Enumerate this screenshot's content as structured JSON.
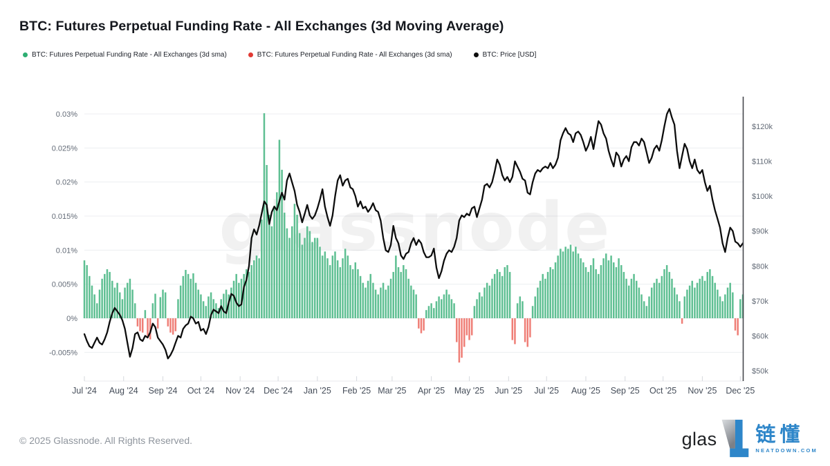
{
  "title": "BTC: Futures Perpetual Funding Rate - All Exchanges (3d Moving Average)",
  "watermark": "glassnode",
  "legend": {
    "items": [
      {
        "label": "BTC: Futures Perpetual Funding Rate - All Exchanges (3d sma)",
        "color": "#2eae72"
      },
      {
        "label": "BTC: Futures Perpetual Funding Rate - All Exchanges (3d sma)",
        "color": "#e13a34"
      },
      {
        "label": "BTC: Price [USD]",
        "color": "#0d0d0d"
      }
    ]
  },
  "footer": {
    "copyright": "© 2025 Glassnode. All Rights Reserved.",
    "brand_text": "glas",
    "logo_cn": "链懂",
    "logo_sub": "NEATDOWN.COM"
  },
  "chart_data": {
    "type": "bar+line",
    "title": "BTC: Futures Perpetual Funding Rate - All Exchanges (3d Moving Average)",
    "grid": true,
    "legend_position": "top-left",
    "x_ticks": [
      "Jul '24",
      "Aug '24",
      "Sep '24",
      "Oct '24",
      "Nov '24",
      "Dec '24",
      "Jan '25",
      "Feb '25",
      "Mar '25",
      "Apr '25",
      "May '25",
      "Jun '25",
      "Jul '25",
      "Aug '25",
      "Sep '25",
      "Oct '25",
      "Nov '25",
      "Dec '25"
    ],
    "x_tick_days": [
      0,
      31,
      62,
      92,
      123,
      153,
      184,
      215,
      243,
      274,
      304,
      335,
      365,
      396,
      427,
      457,
      488,
      518
    ],
    "x_total_days": 520,
    "left_axis": {
      "name": "funding_rate_percent",
      "ticks": [
        "0.03%",
        "0.025%",
        "0.02%",
        "0.015%",
        "0.01%",
        "0.005%",
        "0%",
        "-0.005%"
      ],
      "tick_values": [
        0.03,
        0.025,
        0.02,
        0.015,
        0.01,
        0.005,
        0,
        -0.005
      ]
    },
    "right_axis": {
      "name": "btc_price_usd",
      "ticks": [
        "$120k",
        "$110k",
        "$100k",
        "$90k",
        "$80k",
        "$70k",
        "$60k",
        "$50k"
      ],
      "tick_values": [
        120,
        110,
        100,
        90,
        80,
        70,
        60,
        50
      ]
    },
    "series": [
      {
        "name": "BTC: Futures Perpetual Funding Rate - All Exchanges (3d sma)",
        "type": "bar",
        "unit": "%",
        "step_days": 2,
        "color_positive": "#5ebf92",
        "color_negative": "#ef7e76",
        "values": [
          0.0085,
          0.0078,
          0.0062,
          0.0048,
          0.0035,
          0.0022,
          0.0042,
          0.0058,
          0.0065,
          0.0072,
          0.0068,
          0.0055,
          0.0045,
          0.0052,
          0.0038,
          0.0028,
          0.0045,
          0.0052,
          0.0058,
          0.0042,
          0.0022,
          -0.0012,
          -0.0019,
          -0.0021,
          0.0012,
          -0.0026,
          -0.0031,
          0.0022,
          0.0036,
          -0.0015,
          0.0031,
          0.0042,
          0.0038,
          -0.0012,
          -0.0021,
          -0.0024,
          -0.0019,
          0.0028,
          0.0048,
          0.0062,
          0.0071,
          0.0065,
          0.0058,
          0.0066,
          0.0052,
          0.0042,
          0.0035,
          0.0025,
          0.0018,
          0.0032,
          0.0038,
          0.0028,
          0.0022,
          0.0015,
          0.0028,
          0.0036,
          0.0042,
          0.0035,
          0.0045,
          0.0055,
          0.0065,
          0.0052,
          0.0058,
          0.0065,
          0.0072,
          0.0068,
          0.0078,
          0.0085,
          0.0092,
          0.0088,
          0.0145,
          0.0301,
          0.0225,
          0.0152,
          0.0135,
          0.0165,
          0.0185,
          0.0262,
          0.0218,
          0.0155,
          0.0132,
          0.0118,
          0.0135,
          0.0168,
          0.0152,
          0.0125,
          0.0108,
          0.0118,
          0.0135,
          0.0128,
          0.0112,
          0.0118,
          0.0118,
          0.0105,
          0.0092,
          0.0098,
          0.0088,
          0.0078,
          0.0092,
          0.0098,
          0.0085,
          0.0075,
          0.0088,
          0.0102,
          0.0092,
          0.0078,
          0.0072,
          0.0082,
          0.0072,
          0.0062,
          0.0052,
          0.0045,
          0.0055,
          0.0065,
          0.0052,
          0.0042,
          0.0035,
          0.0045,
          0.0052,
          0.0042,
          0.0048,
          0.0058,
          0.0068,
          0.0092,
          0.0075,
          0.0068,
          0.0078,
          0.0072,
          0.0058,
          0.0048,
          0.0042,
          0.0035,
          -0.0015,
          -0.0022,
          -0.0018,
          0.0012,
          0.0018,
          0.0022,
          0.0015,
          0.0025,
          0.0032,
          0.0028,
          0.0035,
          0.0042,
          0.0035,
          0.0028,
          0.0022,
          -0.0035,
          -0.0065,
          -0.0058,
          -0.0042,
          -0.0025,
          -0.0032,
          -0.0025,
          0.0018,
          0.0028,
          0.0038,
          0.0032,
          0.0045,
          0.0052,
          0.0048,
          0.0058,
          0.0065,
          0.0072,
          0.0068,
          0.0062,
          0.0075,
          0.0078,
          0.0068,
          -0.0032,
          -0.0038,
          0.0022,
          0.0032,
          0.0025,
          -0.0035,
          -0.0042,
          -0.0028,
          0.0018,
          0.0032,
          0.0045,
          0.0055,
          0.0065,
          0.0058,
          0.0068,
          0.0075,
          0.0072,
          0.0082,
          0.0092,
          0.0102,
          0.0098,
          0.0105,
          0.0102,
          0.0108,
          0.0098,
          0.0105,
          0.0095,
          0.0088,
          0.0082,
          0.0075,
          0.0068,
          0.0078,
          0.0088,
          0.0072,
          0.0065,
          0.0078,
          0.0088,
          0.0095,
          0.0085,
          0.0092,
          0.0082,
          0.0075,
          0.0088,
          0.0078,
          0.0068,
          0.0058,
          0.0048,
          0.0058,
          0.0065,
          0.0055,
          0.0045,
          0.0035,
          0.0025,
          0.0018,
          0.0032,
          0.0045,
          0.0052,
          0.0058,
          0.0052,
          0.0062,
          0.0072,
          0.0078,
          0.0068,
          0.0058,
          0.0045,
          0.0035,
          0.0025,
          -0.0008,
          0.0032,
          0.0042,
          0.0048,
          0.0055,
          0.0045,
          0.0052,
          0.0058,
          0.0062,
          0.0055,
          0.0068,
          0.0072,
          0.0062,
          0.0052,
          0.0042,
          0.0032,
          0.0025,
          0.0035,
          0.0045,
          0.0052,
          0.0038,
          -0.0018,
          -0.0025,
          0.0028,
          0.0035
        ]
      },
      {
        "name": "BTC: Price [USD]",
        "type": "line",
        "unit": "USD thousands",
        "step_days": 2,
        "color": "#0d0d0d",
        "values": [
          60.5,
          58.5,
          57,
          56.5,
          58,
          59.5,
          58,
          57.5,
          59,
          61,
          64,
          66.5,
          68,
          67,
          66,
          64.5,
          62,
          58,
          54,
          56.5,
          60.5,
          61,
          59,
          58.5,
          60,
          59.5,
          61,
          63.5,
          62.5,
          59.5,
          58.5,
          57.5,
          56,
          53.5,
          54.5,
          56,
          58,
          60,
          59.5,
          62,
          63,
          63.5,
          65.5,
          65,
          63.5,
          64,
          61.5,
          62,
          60.5,
          62.5,
          66,
          67.5,
          67,
          66.5,
          68.5,
          67,
          66.5,
          69.5,
          72,
          71.5,
          69.5,
          68.5,
          69,
          74,
          76,
          80,
          88,
          90.5,
          89,
          91.5,
          95,
          98.5,
          97.5,
          92,
          95.5,
          97,
          96,
          98.5,
          101,
          99,
          104.5,
          106.5,
          104,
          101.5,
          97.5,
          95.5,
          92.5,
          95,
          97.5,
          94.5,
          93.5,
          94.5,
          96.5,
          99,
          102,
          97,
          94,
          91.5,
          94.5,
          100,
          104.5,
          106,
          103,
          104.5,
          105,
          102.5,
          102,
          100,
          97,
          98.5,
          96.5,
          97,
          95.5,
          96.5,
          98,
          96,
          95.5,
          93,
          88,
          84.5,
          84,
          86,
          91.5,
          88,
          86.5,
          83,
          82,
          83.5,
          84,
          86.5,
          88,
          86,
          87.5,
          86.5,
          84,
          82.5,
          82.5,
          83,
          85,
          79.5,
          76.5,
          78.5,
          81.5,
          83.5,
          84.5,
          84,
          85.5,
          88,
          93,
          94.5,
          94,
          95,
          94.5,
          96.5,
          97,
          94,
          96.5,
          99,
          103,
          103.5,
          102.5,
          104,
          107,
          110.5,
          109,
          106,
          104.5,
          105.5,
          104,
          105.5,
          110,
          108.5,
          107,
          105,
          104.5,
          101,
          100.5,
          104,
          106.5,
          107.5,
          107,
          108,
          108.5,
          108,
          109.5,
          108,
          109,
          111,
          116,
          118,
          119.5,
          118,
          117.5,
          115.5,
          118,
          118.5,
          117.5,
          115.5,
          113,
          114.5,
          117,
          113.5,
          117.5,
          121.5,
          120.5,
          118,
          116.5,
          113,
          110.5,
          108.5,
          112.5,
          111.5,
          108.5,
          110.5,
          111.5,
          110,
          114,
          115.5,
          115.5,
          114.5,
          116.5,
          115.5,
          112.5,
          109.5,
          111,
          113.5,
          114.5,
          113,
          116,
          120,
          123.5,
          125,
          122.5,
          120.5,
          113,
          108,
          111.5,
          115,
          113.5,
          110,
          108,
          110.5,
          107.5,
          106.5,
          107.5,
          104,
          101.5,
          103,
          99,
          96,
          93.5,
          91,
          86.5,
          84,
          88,
          91,
          90,
          87,
          86.5,
          85.5,
          86.5
        ]
      }
    ]
  }
}
